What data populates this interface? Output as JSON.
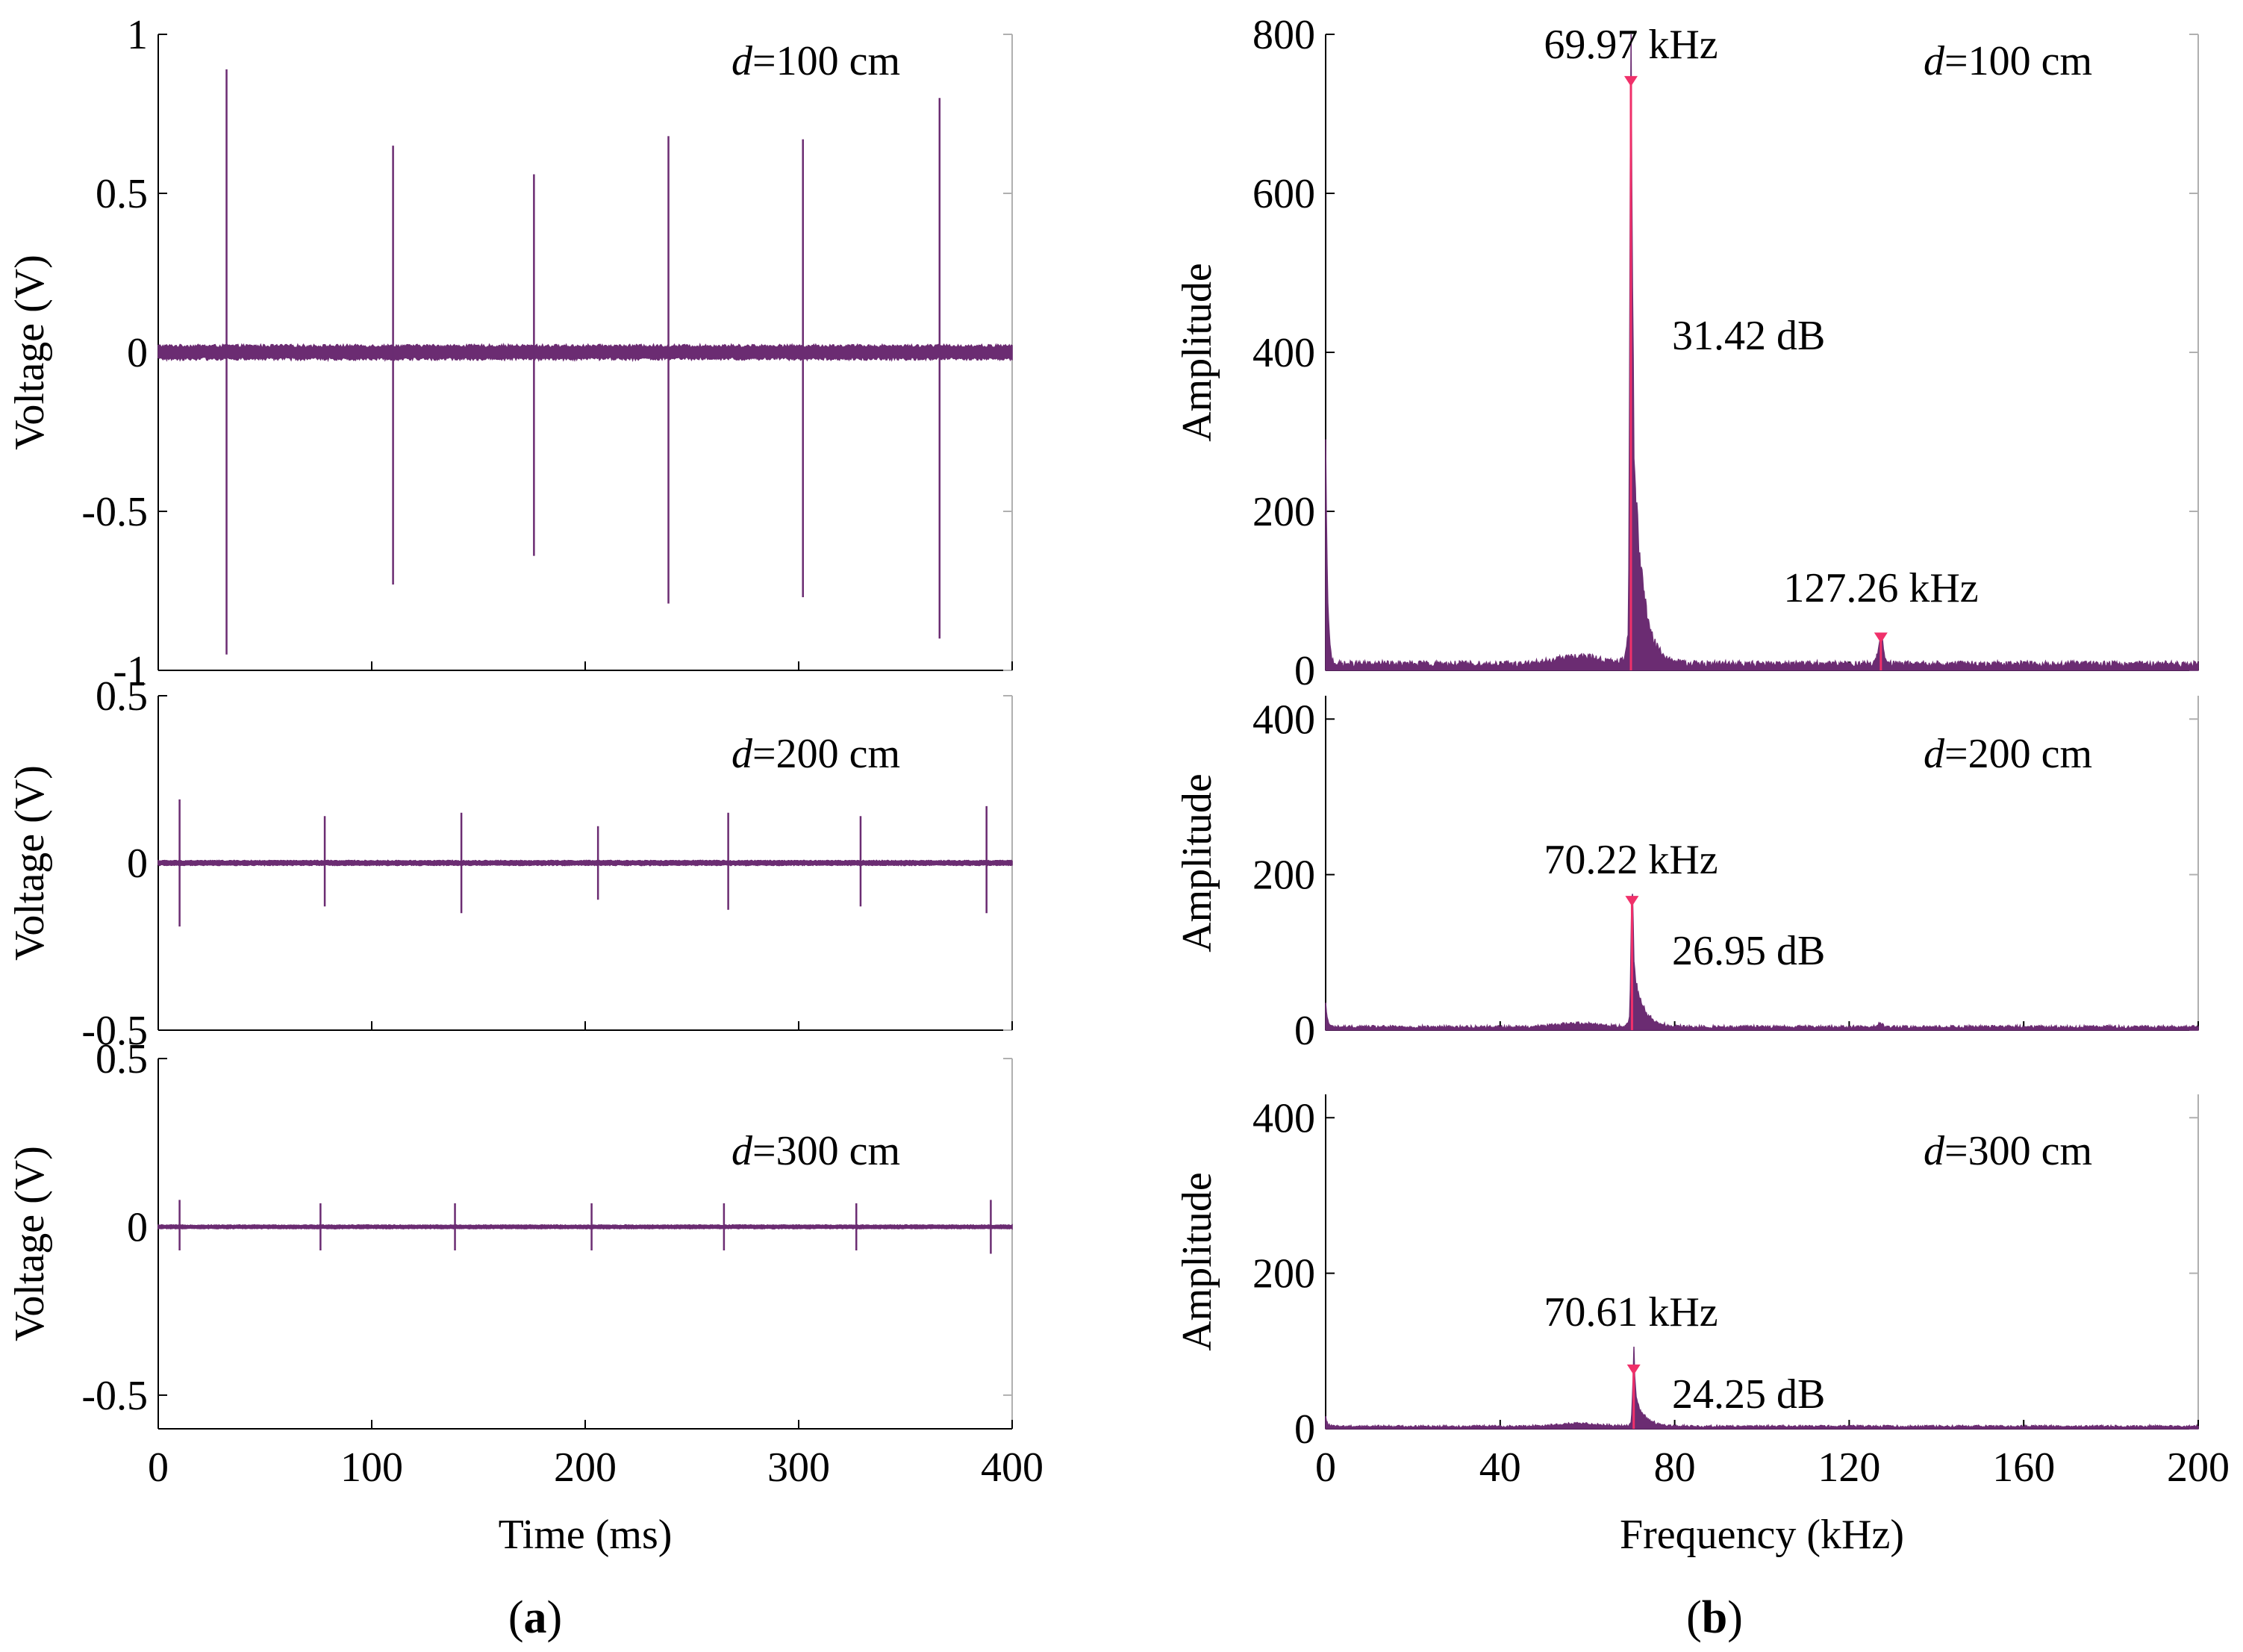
{
  "colors": {
    "signal": "#6b2c72",
    "marker": "#f0306a",
    "axis": "#000000",
    "frame": "#b0b0b0"
  },
  "panel_labels": {
    "a": "a",
    "b": "b"
  },
  "chart_data": [
    {
      "id": "a1",
      "type": "line",
      "title": "",
      "annotation_prefix": "d",
      "annotation_suffix": "=100 cm",
      "xlabel": "",
      "ylabel": "Voltage (V)",
      "xlim": [
        0,
        400
      ],
      "ylim": [
        -1,
        1
      ],
      "yticks": [
        -1,
        -0.5,
        0,
        0.5,
        1
      ],
      "ytick_labels": [
        "-1",
        "-0.5",
        "0",
        "0.5",
        "1"
      ],
      "xticks": [
        0,
        100,
        200,
        300,
        400
      ],
      "xtick_labels": [],
      "noise_amplitude": 0.025,
      "pulses": [
        {
          "x": 32,
          "peak": 0.89,
          "trough": -0.95
        },
        {
          "x": 110,
          "peak": 0.65,
          "trough": -0.73
        },
        {
          "x": 176,
          "peak": 0.56,
          "trough": -0.64
        },
        {
          "x": 239,
          "peak": 0.68,
          "trough": -0.79
        },
        {
          "x": 302,
          "peak": 0.67,
          "trough": -0.77
        },
        {
          "x": 366,
          "peak": 0.8,
          "trough": -0.9
        }
      ]
    },
    {
      "id": "a2",
      "type": "line",
      "title": "",
      "annotation_prefix": "d",
      "annotation_suffix": "=200 cm",
      "xlabel": "",
      "ylabel": "Voltage (V)",
      "xlim": [
        0,
        400
      ],
      "ylim": [
        -0.5,
        0.5
      ],
      "yticks": [
        -0.5,
        0,
        0.5
      ],
      "ytick_labels": [
        "-0.5",
        "0",
        "0.5"
      ],
      "xticks": [
        0,
        100,
        200,
        300,
        400
      ],
      "xtick_labels": [],
      "noise_amplitude": 0.008,
      "pulses": [
        {
          "x": 10,
          "peak": 0.19,
          "trough": -0.19
        },
        {
          "x": 78,
          "peak": 0.14,
          "trough": -0.13
        },
        {
          "x": 142,
          "peak": 0.15,
          "trough": -0.15
        },
        {
          "x": 206,
          "peak": 0.11,
          "trough": -0.11
        },
        {
          "x": 267,
          "peak": 0.15,
          "trough": -0.14
        },
        {
          "x": 329,
          "peak": 0.14,
          "trough": -0.13
        },
        {
          "x": 388,
          "peak": 0.17,
          "trough": -0.15
        }
      ]
    },
    {
      "id": "a3",
      "type": "line",
      "title": "",
      "annotation_prefix": "d",
      "annotation_suffix": "=300 cm",
      "xlabel": "Time  (ms)",
      "ylabel": "Voltage (V)",
      "xlim": [
        0,
        400
      ],
      "ylim": [
        -0.6,
        0.5
      ],
      "yticks": [
        -0.5,
        0,
        0.5
      ],
      "ytick_labels": [
        "-0.5",
        "0",
        "0.5"
      ],
      "xticks": [
        0,
        100,
        200,
        300,
        400
      ],
      "xtick_labels": [
        "0",
        "100",
        "200",
        "300",
        "400"
      ],
      "noise_amplitude": 0.006,
      "pulses": [
        {
          "x": 10,
          "peak": 0.08,
          "trough": -0.07
        },
        {
          "x": 76,
          "peak": 0.07,
          "trough": -0.07
        },
        {
          "x": 139,
          "peak": 0.07,
          "trough": -0.07
        },
        {
          "x": 203,
          "peak": 0.07,
          "trough": -0.07
        },
        {
          "x": 265,
          "peak": 0.07,
          "trough": -0.07
        },
        {
          "x": 327,
          "peak": 0.07,
          "trough": -0.07
        },
        {
          "x": 390,
          "peak": 0.08,
          "trough": -0.08
        }
      ]
    },
    {
      "id": "b1",
      "type": "area",
      "title": "",
      "annotation_prefix": "d",
      "annotation_suffix": "=100 cm",
      "xlabel": "",
      "ylabel": "Amplitude",
      "xlim": [
        0,
        200
      ],
      "ylim": [
        0,
        800
      ],
      "yticks": [
        0,
        200,
        400,
        600,
        800
      ],
      "ytick_labels": [
        "0",
        "200",
        "400",
        "600",
        "800"
      ],
      "xticks": [
        0,
        40,
        80,
        120,
        160,
        200
      ],
      "xtick_labels": [],
      "peaks": [
        {
          "freq": 69.97,
          "amplitude": 740,
          "label": "69.97 kHz"
        },
        {
          "freq": 127.26,
          "amplitude": 40,
          "label": "127.26 kHz"
        }
      ],
      "snr_label": "31.42 dB",
      "spectrum": {
        "baseline": 8,
        "dc_spike": 280,
        "main_peak": 69.97,
        "main_height": 740,
        "body_height": 330,
        "secondary_freq": 127.26,
        "secondary_height": 35
      }
    },
    {
      "id": "b2",
      "type": "area",
      "title": "",
      "annotation_prefix": "d",
      "annotation_suffix": "=200 cm",
      "xlabel": "",
      "ylabel": "Amplitude",
      "xlim": [
        0,
        200
      ],
      "ylim": [
        0,
        430
      ],
      "yticks": [
        0,
        200,
        400
      ],
      "ytick_labels": [
        "0",
        "200",
        "400"
      ],
      "xticks": [
        0,
        40,
        80,
        120,
        160,
        200
      ],
      "xtick_labels": [],
      "peaks": [
        {
          "freq": 70.22,
          "amplitude": 165,
          "label": "70.22 kHz"
        }
      ],
      "snr_label": "26.95 dB",
      "spectrum": {
        "baseline": 4,
        "dc_spike": 30,
        "main_peak": 70.22,
        "main_height": 165,
        "body_height": 80,
        "secondary_freq": 127,
        "secondary_height": 5
      }
    },
    {
      "id": "b3",
      "type": "area",
      "title": "",
      "annotation_prefix": "d",
      "annotation_suffix": "=300 cm",
      "xlabel": "Frequency (kHz)",
      "ylabel": "Amplitude",
      "xlim": [
        0,
        200
      ],
      "ylim": [
        0,
        430
      ],
      "yticks": [
        0,
        200,
        400
      ],
      "ytick_labels": [
        "0",
        "200",
        "400"
      ],
      "xticks": [
        0,
        40,
        80,
        120,
        160,
        200
      ],
      "xtick_labels": [
        "0",
        "40",
        "80",
        "120",
        "160",
        "200"
      ],
      "peaks": [
        {
          "freq": 70.61,
          "amplitude": 75,
          "label": "70.61 kHz"
        }
      ],
      "snr_label": "24.25 dB",
      "spectrum": {
        "baseline": 3,
        "dc_spike": 12,
        "main_peak": 70.61,
        "main_height": 75,
        "body_height": 40,
        "secondary_freq": 127,
        "secondary_height": 0
      }
    }
  ]
}
